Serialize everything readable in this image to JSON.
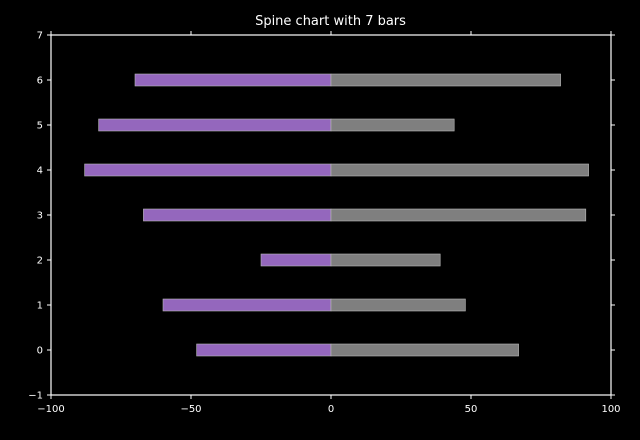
{
  "chart_data": {
    "type": "bar",
    "orientation": "horizontal",
    "title": "Spine chart with 7 bars",
    "xlabel": "",
    "ylabel": "",
    "categories": [
      "0",
      "1",
      "2",
      "3",
      "4",
      "5",
      "6"
    ],
    "series": [
      {
        "values": [
          -48,
          -60,
          -25,
          -67,
          -88,
          -83,
          -70
        ],
        "color": "#9467bd"
      },
      {
        "values": [
          67,
          48,
          39,
          91,
          92,
          44,
          82
        ],
        "color": "#7f7f7f"
      }
    ],
    "xlim": [
      -100,
      100
    ],
    "ylim": [
      -1,
      7
    ],
    "xticks": [
      -100,
      -50,
      0,
      50,
      100
    ],
    "xtick_labels": [
      "−100",
      "−50",
      "0",
      "50",
      "100"
    ],
    "yticks": [
      -1,
      0,
      1,
      2,
      3,
      4,
      5,
      6,
      7
    ],
    "ytick_labels": [
      "−1",
      "0",
      "1",
      "2",
      "3",
      "4",
      "5",
      "6",
      "7"
    ],
    "grid": false,
    "legend": "none",
    "background": "#000000",
    "axis_color": "#ffffff"
  }
}
